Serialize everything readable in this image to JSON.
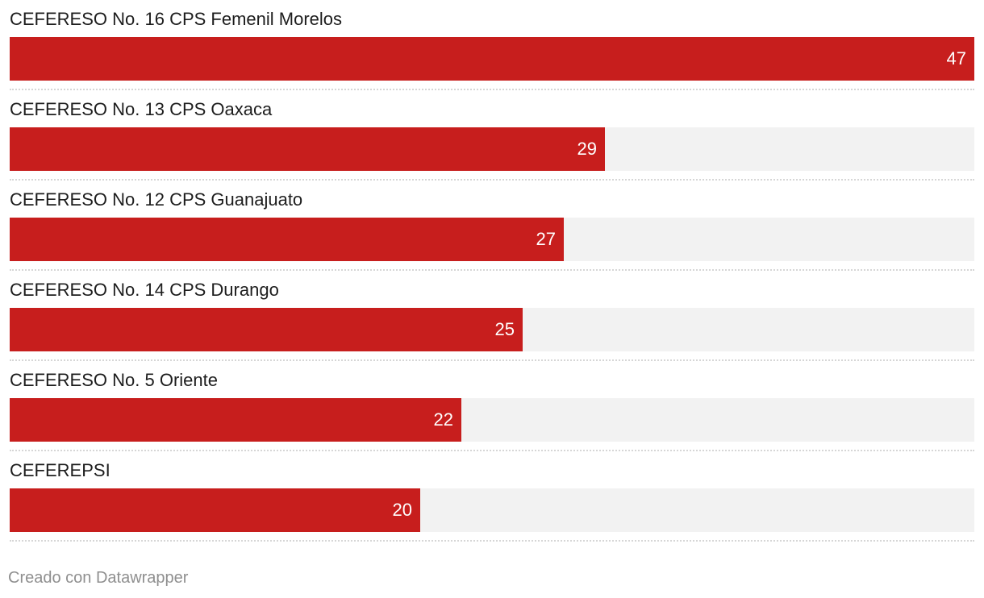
{
  "chart_data": {
    "type": "bar",
    "orientation": "horizontal",
    "categories": [
      "CEFERESO No. 16 CPS Femenil Morelos",
      "CEFERESO No. 13 CPS Oaxaca",
      "CEFERESO No. 12 CPS Guanajuato",
      "CEFERESO No. 14 CPS Durango",
      "CEFERESO No. 5 Oriente",
      "CEFEREPSI"
    ],
    "values": [
      47,
      29,
      27,
      25,
      22,
      20
    ],
    "value_labels": [
      "47",
      "29",
      "27",
      "25",
      "22",
      "20"
    ],
    "xlim": [
      0,
      47
    ],
    "grid": false,
    "legend": "none",
    "title": "",
    "xlabel": "",
    "ylabel": "",
    "colors": {
      "bar": "#c71e1d",
      "track": "#f2f2f2",
      "value_text": "#ffffff"
    }
  },
  "footer": {
    "credit": "Creado con Datawrapper"
  }
}
